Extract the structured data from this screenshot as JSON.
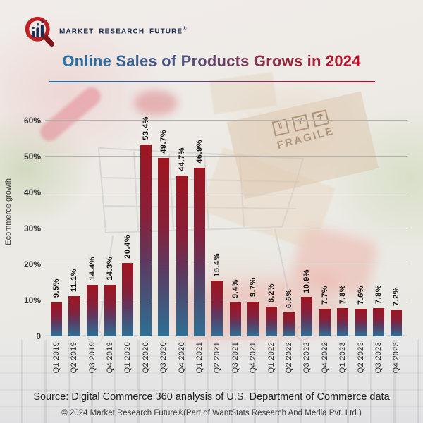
{
  "header": {
    "brand_name": "MARKET RESEARCH FUTURE",
    "registered_mark": "®"
  },
  "title": "Online Sales of Products Grows in 2024",
  "chart_data": {
    "type": "bar",
    "title": "Online Sales of Products Grows in 2024",
    "ylabel": "Ecommerce growth",
    "xlabel": "",
    "categories": [
      "Q1 2019",
      "Q2 2019",
      "Q3 2019",
      "Q4 2019",
      "Q1 2020",
      "Q2 2020",
      "Q3 2020",
      "Q4 2020",
      "Q1 2021",
      "Q2 2021",
      "Q3 2021",
      "Q4 2021",
      "Q1 2022",
      "Q2 2022",
      "Q3 2022",
      "Q4 2022",
      "Q1 2023",
      "Q2 2023",
      "Q3 2023",
      "Q4 2023"
    ],
    "values": [
      9.5,
      11.1,
      14.4,
      14.3,
      20.4,
      53.4,
      49.7,
      44.7,
      46.9,
      15.4,
      9.4,
      9.7,
      8.2,
      6.6,
      10.9,
      7.7,
      7.8,
      7.6,
      7.8,
      7.2
    ],
    "value_labels": [
      "9.5%",
      "11.1%",
      "14.4%",
      "14.3%",
      "20.4%",
      "53.4%",
      "49.7%",
      "44.7%",
      "46.9%",
      "15.4%",
      "9.4%",
      "9.7%",
      "8.2%",
      "6.6%",
      "10.9%",
      "7.7%",
      "7.8%",
      "7.6%",
      "7.8%",
      "7.2%"
    ],
    "yticks": [
      {
        "value": 0,
        "label": "0"
      },
      {
        "value": 10,
        "label": "10%"
      },
      {
        "value": 20,
        "label": "20%"
      },
      {
        "value": 30,
        "label": "30%"
      },
      {
        "value": 40,
        "label": "40%"
      },
      {
        "value": 50,
        "label": "50%"
      },
      {
        "value": 60,
        "label": "60%"
      }
    ],
    "ylim": [
      0,
      60
    ],
    "grid": true,
    "legend": "none",
    "bar_gradient": {
      "top": "#9e1520",
      "mid": "#5c3a60",
      "bottom": "#2e7095"
    }
  },
  "background": {
    "fragile_label": "FRAGILE",
    "fragile_icons": {
      "stack": "‖",
      "glass": "Y",
      "umbrella": "☂"
    }
  },
  "footer": {
    "source": "Source: Digital Commerce 360 analysis of U.S. Department of Commerce data",
    "copyright": "© 2024 Market Research Future®(Part of WantStats Research And Media Pvt. Ltd.)"
  },
  "colors": {
    "title_gradient_start": "#1e74a8",
    "title_gradient_end": "#c00f27",
    "gridline": "#b4b2af",
    "brand_navy": "#1c2c50",
    "logo_red": "#bf2026"
  }
}
